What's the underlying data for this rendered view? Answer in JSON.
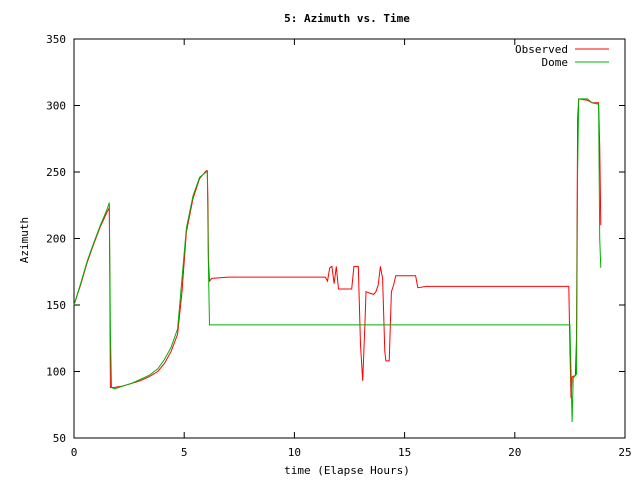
{
  "chart_data": {
    "type": "line",
    "title": "5: Azimuth vs. Time",
    "xlabel": "time (Elapse Hours)",
    "ylabel": "Azimuth",
    "xlim": [
      0,
      25
    ],
    "ylim": [
      50,
      350
    ],
    "xticks": [
      0,
      5,
      10,
      15,
      20,
      25
    ],
    "yticks": [
      50,
      100,
      150,
      200,
      250,
      300,
      350
    ],
    "grid": false,
    "legend_position": "top-right",
    "series": [
      {
        "name": "Observed",
        "color": "#ff0000",
        "points": [
          [
            0.0,
            150
          ],
          [
            0.3,
            165
          ],
          [
            0.6,
            182
          ],
          [
            0.9,
            196
          ],
          [
            1.2,
            209
          ],
          [
            1.5,
            220
          ],
          [
            1.6,
            223
          ],
          [
            1.62,
            180
          ],
          [
            1.65,
            88
          ],
          [
            1.8,
            88
          ],
          [
            2.2,
            89
          ],
          [
            2.6,
            91
          ],
          [
            3.0,
            93
          ],
          [
            3.4,
            96
          ],
          [
            3.8,
            100
          ],
          [
            4.1,
            106
          ],
          [
            4.4,
            115
          ],
          [
            4.7,
            128
          ],
          [
            4.9,
            160
          ],
          [
            5.1,
            205
          ],
          [
            5.4,
            230
          ],
          [
            5.7,
            245
          ],
          [
            6.0,
            251
          ],
          [
            6.05,
            251
          ],
          [
            6.08,
            225
          ],
          [
            6.1,
            185
          ],
          [
            6.15,
            168
          ],
          [
            6.25,
            170
          ],
          [
            7.0,
            171
          ],
          [
            8.0,
            171
          ],
          [
            9.0,
            171
          ],
          [
            10.0,
            171
          ],
          [
            11.0,
            171
          ],
          [
            11.4,
            171
          ],
          [
            11.5,
            168
          ],
          [
            11.6,
            178
          ],
          [
            11.7,
            179
          ],
          [
            11.8,
            166
          ],
          [
            11.9,
            179
          ],
          [
            12.0,
            162
          ],
          [
            12.2,
            162
          ],
          [
            12.6,
            162
          ],
          [
            12.7,
            179
          ],
          [
            12.9,
            179
          ],
          [
            13.0,
            120
          ],
          [
            13.1,
            93
          ],
          [
            13.2,
            135
          ],
          [
            13.25,
            160
          ],
          [
            13.4,
            159
          ],
          [
            13.6,
            158
          ],
          [
            13.7,
            160
          ],
          [
            13.8,
            165
          ],
          [
            13.9,
            179
          ],
          [
            14.0,
            170
          ],
          [
            14.1,
            115
          ],
          [
            14.15,
            108
          ],
          [
            14.3,
            108
          ],
          [
            14.4,
            160
          ],
          [
            14.5,
            165
          ],
          [
            14.6,
            172
          ],
          [
            15.0,
            172
          ],
          [
            15.5,
            172
          ],
          [
            15.6,
            163
          ],
          [
            16.0,
            164
          ],
          [
            18.0,
            164
          ],
          [
            20.0,
            164
          ],
          [
            22.0,
            164
          ],
          [
            22.45,
            164
          ],
          [
            22.5,
            118
          ],
          [
            22.55,
            80
          ],
          [
            22.6,
            96
          ],
          [
            22.75,
            97
          ],
          [
            22.8,
            125
          ],
          [
            22.85,
            290
          ],
          [
            22.9,
            305
          ],
          [
            23.3,
            304
          ],
          [
            23.5,
            302
          ],
          [
            23.8,
            302
          ],
          [
            23.85,
            270
          ],
          [
            23.9,
            210
          ]
        ]
      },
      {
        "name": "Dome",
        "color": "#00b000",
        "points": [
          [
            0.0,
            150
          ],
          [
            0.3,
            166
          ],
          [
            0.6,
            183
          ],
          [
            0.9,
            197
          ],
          [
            1.2,
            210
          ],
          [
            1.5,
            222
          ],
          [
            1.6,
            227
          ],
          [
            1.65,
            130
          ],
          [
            1.7,
            88
          ],
          [
            1.85,
            87
          ],
          [
            2.2,
            89
          ],
          [
            2.6,
            91
          ],
          [
            3.0,
            94
          ],
          [
            3.4,
            97
          ],
          [
            3.8,
            102
          ],
          [
            4.1,
            109
          ],
          [
            4.4,
            118
          ],
          [
            4.7,
            132
          ],
          [
            4.9,
            170
          ],
          [
            5.1,
            208
          ],
          [
            5.4,
            232
          ],
          [
            5.7,
            246
          ],
          [
            6.0,
            250
          ],
          [
            6.05,
            250
          ],
          [
            6.1,
            180
          ],
          [
            6.15,
            135
          ],
          [
            7.0,
            135
          ],
          [
            10.0,
            135
          ],
          [
            13.0,
            135
          ],
          [
            16.0,
            135
          ],
          [
            19.0,
            135
          ],
          [
            22.0,
            135
          ],
          [
            22.5,
            135
          ],
          [
            22.55,
            100
          ],
          [
            22.6,
            62
          ],
          [
            22.65,
            95
          ],
          [
            22.8,
            98
          ],
          [
            22.85,
            250
          ],
          [
            22.9,
            305
          ],
          [
            23.3,
            305
          ],
          [
            23.5,
            302
          ],
          [
            23.8,
            301
          ],
          [
            23.85,
            200
          ],
          [
            23.9,
            178
          ]
        ]
      }
    ]
  }
}
